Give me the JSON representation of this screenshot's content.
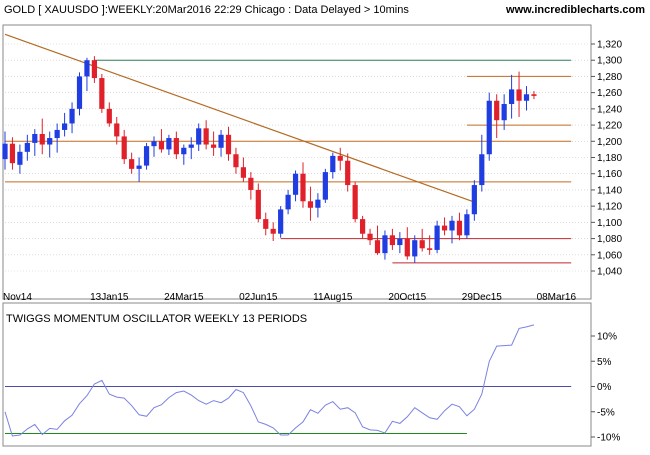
{
  "header": {
    "title": "GOLD [ XAUUSDO ]:WEEKLY:20Mar2016 22:29 Chicago : Data Delayed > 10mins",
    "site": "www.incrediblecharts.com"
  },
  "colors": {
    "up": "#1f3de0",
    "down": "#e0202a",
    "trendline": "#b36b24",
    "resistance": "#2e7d5b",
    "support_orange": "#c46a1f",
    "support_red": "#c0282f",
    "osc_line": "#7b82e0",
    "osc_zero": "#4b4ba8",
    "osc_low": "#1c8a1c",
    "grid": "#c8c8c8"
  },
  "chart_data": [
    {
      "type": "candlestick",
      "y_axis_side": "right",
      "ylim": [
        1030,
        1330
      ],
      "yticks": [
        "1,320",
        "1,300",
        "1,280",
        "1,260",
        "1,240",
        "1,220",
        "1,200",
        "1,180",
        "1,160",
        "1,140",
        "1,120",
        "1,100",
        "1,080",
        "1,060",
        "1,040"
      ],
      "ytick_values": [
        1320,
        1300,
        1280,
        1260,
        1240,
        1220,
        1200,
        1180,
        1160,
        1140,
        1120,
        1100,
        1080,
        1060,
        1040
      ],
      "xtick_labels": [
        "Nov14",
        "13Jan15",
        "24Mar15",
        "02Jun15",
        "11Aug15",
        "20Oct15",
        "29Dec15",
        "08Mar16"
      ],
      "xtick_index": [
        0,
        14,
        24,
        34,
        44,
        54,
        64,
        74
      ],
      "ohlc": [
        [
          1178,
          1212,
          1165,
          1197
        ],
        [
          1197,
          1205,
          1165,
          1173
        ],
        [
          1171,
          1196,
          1160,
          1187
        ],
        [
          1187,
          1208,
          1176,
          1198
        ],
        [
          1198,
          1215,
          1182,
          1209
        ],
        [
          1209,
          1228,
          1184,
          1196
        ],
        [
          1196,
          1212,
          1180,
          1204
        ],
        [
          1204,
          1222,
          1186,
          1214
        ],
        [
          1214,
          1235,
          1206,
          1222
        ],
        [
          1222,
          1248,
          1210,
          1240
        ],
        [
          1240,
          1285,
          1232,
          1280
        ],
        [
          1280,
          1303,
          1262,
          1300
        ],
        [
          1300,
          1305,
          1272,
          1278
        ],
        [
          1278,
          1283,
          1235,
          1240
        ],
        [
          1240,
          1248,
          1218,
          1222
        ],
        [
          1222,
          1230,
          1196,
          1206
        ],
        [
          1206,
          1214,
          1172,
          1178
        ],
        [
          1178,
          1186,
          1160,
          1166
        ],
        [
          1166,
          1180,
          1150,
          1170
        ],
        [
          1170,
          1198,
          1165,
          1194
        ],
        [
          1194,
          1206,
          1181,
          1200
        ],
        [
          1200,
          1215,
          1186,
          1190
        ],
        [
          1190,
          1208,
          1183,
          1204
        ],
        [
          1204,
          1212,
          1178,
          1184
        ],
        [
          1184,
          1196,
          1171,
          1192
        ],
        [
          1192,
          1205,
          1178,
          1196
        ],
        [
          1196,
          1222,
          1188,
          1216
        ],
        [
          1216,
          1226,
          1190,
          1196
        ],
        [
          1196,
          1212,
          1182,
          1192
        ],
        [
          1192,
          1214,
          1181,
          1208
        ],
        [
          1208,
          1218,
          1176,
          1184
        ],
        [
          1184,
          1192,
          1160,
          1168
        ],
        [
          1168,
          1180,
          1150,
          1155
        ],
        [
          1155,
          1162,
          1128,
          1140
        ],
        [
          1140,
          1148,
          1100,
          1104
        ],
        [
          1104,
          1112,
          1084,
          1092
        ],
        [
          1092,
          1100,
          1077,
          1086
        ],
        [
          1086,
          1120,
          1081,
          1116
        ],
        [
          1116,
          1140,
          1110,
          1134
        ],
        [
          1134,
          1164,
          1126,
          1160
        ],
        [
          1160,
          1174,
          1118,
          1126
        ],
        [
          1126,
          1144,
          1102,
          1118
        ],
        [
          1118,
          1136,
          1106,
          1128
        ],
        [
          1128,
          1166,
          1124,
          1162
        ],
        [
          1162,
          1186,
          1154,
          1182
        ],
        [
          1182,
          1192,
          1164,
          1176
        ],
        [
          1176,
          1185,
          1138,
          1146
        ],
        [
          1146,
          1150,
          1100,
          1104
        ],
        [
          1104,
          1108,
          1080,
          1086
        ],
        [
          1086,
          1092,
          1072,
          1078
        ],
        [
          1078,
          1096,
          1060,
          1062
        ],
        [
          1062,
          1090,
          1054,
          1084
        ],
        [
          1084,
          1092,
          1066,
          1072
        ],
        [
          1072,
          1088,
          1062,
          1080
        ],
        [
          1080,
          1094,
          1054,
          1058
        ],
        [
          1058,
          1084,
          1050,
          1078
        ],
        [
          1078,
          1092,
          1064,
          1068
        ],
        [
          1068,
          1084,
          1060,
          1066
        ],
        [
          1066,
          1102,
          1062,
          1096
        ],
        [
          1096,
          1106,
          1084,
          1090
        ],
        [
          1090,
          1108,
          1074,
          1102
        ],
        [
          1102,
          1112,
          1078,
          1084
        ],
        [
          1084,
          1116,
          1080,
          1110
        ],
        [
          1110,
          1152,
          1102,
          1146
        ],
        [
          1146,
          1208,
          1138,
          1184
        ],
        [
          1184,
          1260,
          1176,
          1250
        ],
        [
          1250,
          1258,
          1204,
          1226
        ],
        [
          1226,
          1258,
          1214,
          1246
        ],
        [
          1246,
          1282,
          1228,
          1264
        ],
        [
          1264,
          1286,
          1230,
          1250
        ],
        [
          1250,
          1268,
          1238,
          1258
        ],
        [
          1258,
          1262,
          1252,
          1256
        ]
      ],
      "hlines": [
        {
          "y": 1300,
          "from": 12,
          "to": 76,
          "color": "resistance"
        },
        {
          "y": 1280,
          "from": 62,
          "to": 76,
          "color": "support_orange"
        },
        {
          "y": 1220,
          "from": 62,
          "to": 76,
          "color": "support_orange"
        },
        {
          "y": 1200,
          "from": 0,
          "to": 76,
          "color": "support_orange"
        },
        {
          "y": 1150,
          "from": 0,
          "to": 76,
          "color": "support_orange"
        },
        {
          "y": 1080,
          "from": 37,
          "to": 76,
          "color": "support_red"
        },
        {
          "y": 1050,
          "from": 52,
          "to": 76,
          "color": "support_red"
        }
      ],
      "trendline": {
        "from": [
          0,
          1332
        ],
        "to": [
          63,
          1125
        ]
      }
    },
    {
      "type": "line",
      "title": "TWIGGS MOMENTUM OSCILLATOR WEEKLY 13 PERIODS",
      "y_axis_side": "right",
      "ylim": [
        -11,
        14
      ],
      "yticks": [
        "10%",
        "5%",
        "0%",
        "-5%",
        "-10%"
      ],
      "ytick_values": [
        10,
        5,
        0,
        -5,
        -10
      ],
      "reference_lines": [
        {
          "y": 0,
          "from": 0,
          "to": 76,
          "color": "osc_zero"
        },
        {
          "y": -9.3,
          "from": 0,
          "to": 62,
          "color": "osc_low"
        }
      ],
      "values": [
        -5,
        -9.8,
        -9.6,
        -8.4,
        -7.5,
        -9.5,
        -8.3,
        -8.5,
        -6.8,
        -5.7,
        -3.4,
        -1.8,
        0.5,
        1.2,
        -1.5,
        -2.1,
        -2.3,
        -3.8,
        -5.6,
        -5.9,
        -4.2,
        -3.6,
        -2.2,
        -1.2,
        -0.9,
        -1.7,
        -2.8,
        -3.5,
        -2.8,
        -3.2,
        -2.3,
        -0.6,
        -1.2,
        -3.8,
        -7.0,
        -7.5,
        -8.2,
        -9.6,
        -9.6,
        -8.2,
        -7.0,
        -4.6,
        -5.3,
        -3.7,
        -3.0,
        -4.5,
        -4.2,
        -5.2,
        -8.0,
        -8.6,
        -8.7,
        -9.2,
        -6.9,
        -7.3,
        -6.0,
        -4.2,
        -5.2,
        -6.2,
        -6.5,
        -4.8,
        -3.5,
        -4.0,
        -5.8,
        -4.5,
        -1.5,
        5,
        8,
        8.1,
        8.2,
        11.5,
        11.8,
        12.2
      ]
    }
  ]
}
